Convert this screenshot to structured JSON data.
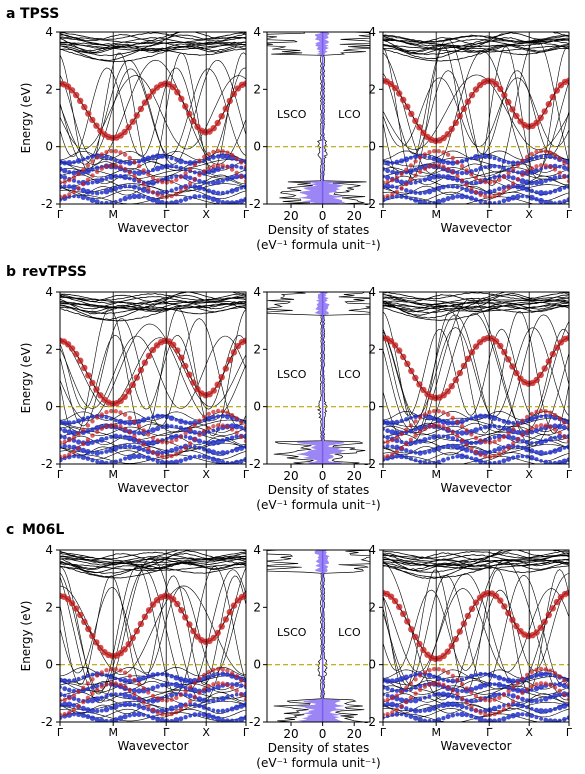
{
  "panels": [
    {
      "letter": "a",
      "method": "TPSS"
    },
    {
      "letter": "b",
      "method": "revTPSS"
    },
    {
      "letter": "c",
      "method": "M06L"
    }
  ],
  "labels": {
    "ylabel": "Energy (eV)",
    "xlabel_band": "Wavevector",
    "xlabel_dos_line1": "Density of states",
    "xlabel_dos_line2": "(eV⁻¹ formula unit⁻¹)",
    "lsco": "LSCO",
    "lco": "LCO"
  },
  "band_axes": {
    "y_ticks": [
      -2,
      0,
      2,
      4
    ],
    "ylim": [
      -2,
      4
    ],
    "k_path": [
      "Γ",
      "M",
      "Γ̅",
      "X",
      "Γ"
    ]
  },
  "dos_axes": {
    "x_ticks": [
      "20",
      "0",
      "20"
    ],
    "y_ticks": [
      "-2",
      "0",
      "2",
      "4"
    ]
  },
  "colors": {
    "band_line": "#000000",
    "cu_dx2y2_weight": "#c81e1e",
    "o_p_weight": "#2030c8",
    "dos_fill": "#7b5cf0",
    "fermi_level": "#b8a400"
  },
  "chart_data": [
    {
      "type": "line",
      "title": "a TPSS",
      "panel": "LSCO band structure",
      "ylabel": "Energy (eV)",
      "xlabel": "Wavevector",
      "ylim": [
        -2,
        4
      ],
      "x": [
        "Γ",
        "M",
        "Γ̅",
        "X",
        "Γ"
      ],
      "series": [
        {
          "name": "Cu d x2-y2 band",
          "values": [
            2.2,
            0.3,
            2.2,
            0.5,
            2.2
          ]
        }
      ]
    },
    {
      "type": "area",
      "title": "a TPSS",
      "panel": "DOS",
      "xlabel": "Density of states (eV⁻¹ formula unit⁻¹)",
      "ylim": [
        -2,
        4
      ]
    },
    {
      "type": "line",
      "title": "a TPSS",
      "panel": "LCO band structure",
      "xlabel": "Wavevector",
      "ylim": [
        -2,
        4
      ],
      "x": [
        "Γ",
        "M",
        "Γ̅",
        "X",
        "Γ"
      ],
      "series": [
        {
          "name": "Cu d x2-y2 band",
          "values": [
            2.3,
            0.2,
            2.3,
            0.7,
            2.3
          ]
        }
      ]
    },
    {
      "type": "line",
      "title": "b revTPSS",
      "panel": "LSCO band structure",
      "ylabel": "Energy (eV)",
      "xlabel": "Wavevector",
      "ylim": [
        -2,
        4
      ],
      "x": [
        "Γ",
        "M",
        "Γ̅",
        "X",
        "Γ"
      ],
      "series": [
        {
          "name": "Cu d x2-y2 band",
          "values": [
            2.3,
            0.1,
            2.3,
            0.4,
            2.3
          ]
        }
      ]
    },
    {
      "type": "area",
      "title": "b revTPSS",
      "panel": "DOS",
      "xlabel": "Density of states (eV⁻¹ formula unit⁻¹)",
      "ylim": [
        -2,
        4
      ]
    },
    {
      "type": "line",
      "title": "b revTPSS",
      "panel": "LCO band structure",
      "xlabel": "Wavevector",
      "ylim": [
        -2,
        4
      ],
      "x": [
        "Γ",
        "M",
        "Γ̅",
        "X",
        "Γ"
      ],
      "series": [
        {
          "name": "Cu d x2-y2 band",
          "values": [
            2.4,
            0.3,
            2.4,
            0.8,
            2.4
          ]
        }
      ]
    },
    {
      "type": "line",
      "title": "c M06L",
      "panel": "LSCO band structure",
      "ylabel": "Energy (eV)",
      "xlabel": "Wavevector",
      "ylim": [
        -2,
        4
      ],
      "x": [
        "Γ",
        "M",
        "Γ̅",
        "X",
        "Γ"
      ],
      "series": [
        {
          "name": "Cu d x2-y2 band",
          "values": [
            2.4,
            0.3,
            2.4,
            0.8,
            2.4
          ]
        }
      ]
    },
    {
      "type": "area",
      "title": "c M06L",
      "panel": "DOS",
      "xlabel": "Density of states (eV⁻¹ formula unit⁻¹)",
      "ylim": [
        -2,
        4
      ]
    },
    {
      "type": "line",
      "title": "c M06L",
      "panel": "LCO band structure",
      "xlabel": "Wavevector",
      "ylim": [
        -2,
        4
      ],
      "x": [
        "Γ",
        "M",
        "Γ̅",
        "X",
        "Γ"
      ],
      "series": [
        {
          "name": "Cu d x2-y2 band",
          "values": [
            2.5,
            0.2,
            2.5,
            1.0,
            2.5
          ]
        }
      ]
    }
  ]
}
